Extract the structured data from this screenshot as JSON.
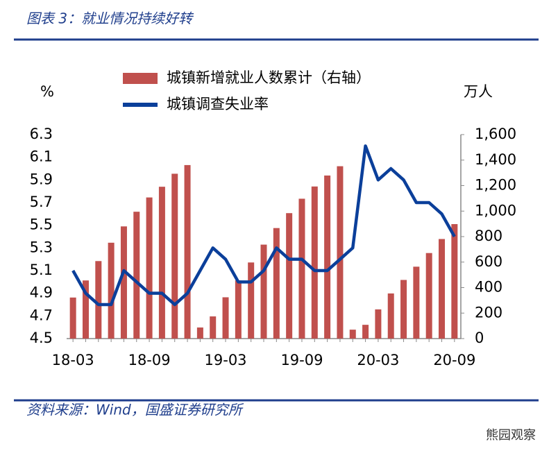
{
  "chart_data": {
    "type": "bar+line",
    "title": "图表 3：就业情况持续好转",
    "source": "资料来源：Wind，国盛证券研究所",
    "watermark": "熊园观察",
    "ylabel": "%",
    "y2label": "万人",
    "categories": [
      "18-03",
      null,
      null,
      null,
      null,
      null,
      "18-09",
      null,
      null,
      null,
      null,
      null,
      "19-03",
      null,
      null,
      null,
      null,
      null,
      "19-09",
      null,
      null,
      null,
      null,
      null,
      "20-03",
      null,
      null,
      null,
      null,
      null,
      "20-09"
    ],
    "series": [
      {
        "name": "城镇新增就业人数累计（右轴）",
        "type": "bar",
        "axis": "y2",
        "color": "#c0504d",
        "values": [
          322,
          456,
          608,
          752,
          880,
          995,
          1107,
          1191,
          1293,
          1361,
          87,
          174,
          324,
          456,
          597,
          737,
          867,
          984,
          1097,
          1193,
          1279,
          1352,
          70,
          108,
          229,
          354,
          460,
          564,
          671,
          781,
          898
        ]
      },
      {
        "name": "城镇调查失业率",
        "type": "line",
        "axis": "y",
        "color": "#0b3f9a",
        "values": [
          5.1,
          4.9,
          4.8,
          4.8,
          5.1,
          5.0,
          4.9,
          4.9,
          4.8,
          4.9,
          5.1,
          5.3,
          5.2,
          5.0,
          5.0,
          5.1,
          5.3,
          5.2,
          5.2,
          5.1,
          5.1,
          5.2,
          5.3,
          6.2,
          5.9,
          6.0,
          5.9,
          5.7,
          5.7,
          5.6,
          5.4
        ]
      }
    ],
    "ylim": [
      4.5,
      6.3
    ],
    "yticks": [
      4.5,
      4.7,
      4.9,
      5.1,
      5.3,
      5.5,
      5.7,
      5.9,
      6.1,
      6.3
    ],
    "y2lim": [
      0,
      1600
    ],
    "y2ticks": [
      0,
      200,
      400,
      600,
      800,
      {
        "value": 1000,
        "label": "1,000"
      },
      {
        "value": 1200,
        "label": "1,200"
      },
      {
        "value": 1400,
        "label": "1,400"
      },
      {
        "value": 1600,
        "label": "1,600"
      }
    ],
    "grid": false
  }
}
